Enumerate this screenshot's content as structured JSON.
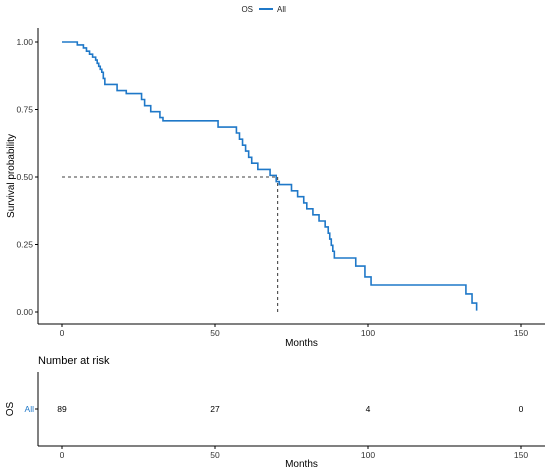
{
  "chart_data": [
    {
      "type": "line",
      "chart_subtype": "kaplan-meier survival curve",
      "legend": {
        "title": "OS",
        "entries": [
          "All"
        ],
        "placement": "top-center"
      },
      "xlabel": "Months",
      "ylabel": "Survival probability",
      "xlim": [
        0,
        150
      ],
      "ylim": [
        0,
        1
      ],
      "x_ticks": [
        0,
        50,
        100,
        150
      ],
      "y_ticks": [
        "0.00",
        "0.25",
        "0.50",
        "0.75",
        "1.00"
      ],
      "grid": false,
      "median_survival": {
        "x": 70.5,
        "y": 0.5,
        "dashed_guides": true
      },
      "series": [
        {
          "name": "All",
          "color": "#1f78c8",
          "steps": [
            [
              0,
              1.0
            ],
            [
              5,
              0.989
            ],
            [
              7,
              0.978
            ],
            [
              8,
              0.966
            ],
            [
              9,
              0.955
            ],
            [
              10,
              0.944
            ],
            [
              11,
              0.933
            ],
            [
              11.5,
              0.921
            ],
            [
              12,
              0.91
            ],
            [
              12.5,
              0.899
            ],
            [
              13,
              0.888
            ],
            [
              13.5,
              0.865
            ],
            [
              14,
              0.843
            ],
            [
              18,
              0.82
            ],
            [
              21,
              0.809
            ],
            [
              26,
              0.787
            ],
            [
              27,
              0.764
            ],
            [
              29,
              0.742
            ],
            [
              32,
              0.72
            ],
            [
              33,
              0.708
            ],
            [
              50,
              0.708
            ],
            [
              51,
              0.685
            ],
            [
              57,
              0.663
            ],
            [
              58,
              0.64
            ],
            [
              59,
              0.618
            ],
            [
              60,
              0.596
            ],
            [
              61,
              0.573
            ],
            [
              62,
              0.551
            ],
            [
              64,
              0.528
            ],
            [
              68,
              0.506
            ],
            [
              70,
              0.483
            ],
            [
              71,
              0.472
            ],
            [
              75,
              0.449
            ],
            [
              77,
              0.427
            ],
            [
              79,
              0.404
            ],
            [
              80,
              0.382
            ],
            [
              82,
              0.36
            ],
            [
              84,
              0.337
            ],
            [
              86,
              0.315
            ],
            [
              87,
              0.292
            ],
            [
              87.5,
              0.27
            ],
            [
              88,
              0.247
            ],
            [
              88.5,
              0.225
            ],
            [
              89,
              0.2
            ],
            [
              96,
              0.17
            ],
            [
              99,
              0.13
            ],
            [
              101,
              0.1
            ],
            [
              131,
              0.1
            ],
            [
              132,
              0.067
            ],
            [
              134,
              0.033
            ],
            [
              135.5,
              0.005
            ]
          ]
        }
      ]
    },
    {
      "type": "table",
      "title": "Number at risk",
      "row_group_label": "OS",
      "xlabel": "Months",
      "xlim": [
        0,
        150
      ],
      "x_ticks": [
        0,
        50,
        100,
        150
      ],
      "rows": [
        {
          "name": "All",
          "color": "#1f78c8",
          "values": [
            89,
            27,
            4,
            0
          ]
        }
      ]
    }
  ]
}
